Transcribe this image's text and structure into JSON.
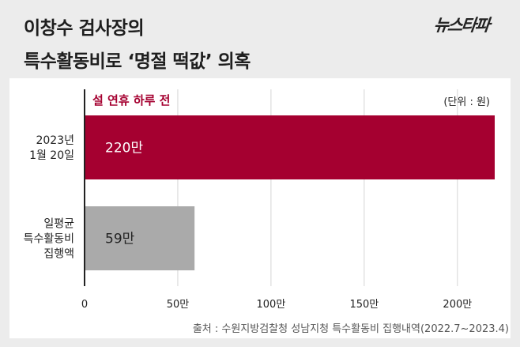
{
  "header": {
    "title_line1": "이창수 검사장의",
    "title_line2": "특수활동비로 ‘명절 떡값’ 의혹",
    "logo_text": "뉴스타파"
  },
  "chart_data": {
    "type": "bar",
    "orientation": "horizontal",
    "title": "설 연휴 하루 전",
    "unit_label": "(단위 : 원)",
    "categories": [
      [
        "2023년",
        "1월 20일"
      ],
      [
        "일평균",
        "특수활동비",
        "집행액"
      ]
    ],
    "values": [
      220,
      59
    ],
    "value_labels": [
      "220만",
      "59만"
    ],
    "bar_colors": [
      "#a50030",
      "#aaaaaa"
    ],
    "xlim": [
      0,
      220
    ],
    "xticks": [
      0,
      50,
      100,
      150,
      200
    ],
    "xtick_labels": [
      "0",
      "50만",
      "100만",
      "150만",
      "200만"
    ],
    "grid": true,
    "source": "출처 : 수원지방검찰청 성남지청 특수활동비 집행내역(2022.7~2023.4)"
  }
}
